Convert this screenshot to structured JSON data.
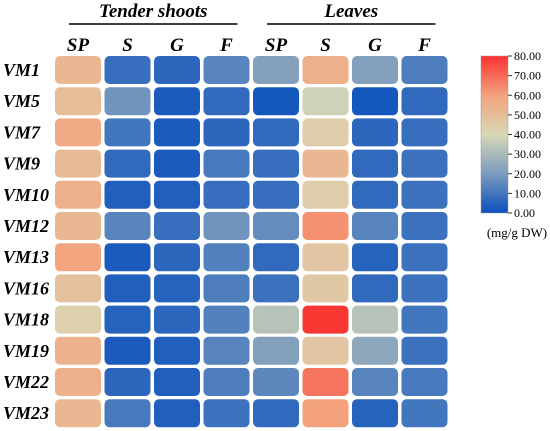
{
  "chart_data": {
    "type": "heatmap",
    "groups": [
      {
        "label": "Tender shoots",
        "columns": [
          "SP",
          "S",
          "G",
          "F"
        ]
      },
      {
        "label": "Leaves",
        "columns": [
          "SP",
          "S",
          "G",
          "F"
        ]
      }
    ],
    "columns": [
      "SP",
      "S",
      "G",
      "F",
      "SP",
      "S",
      "G",
      "F"
    ],
    "rows": [
      "VM1",
      "VM5",
      "VM7",
      "VM9",
      "VM10",
      "VM12",
      "VM13",
      "VM16",
      "VM18",
      "VM19",
      "VM22",
      "VM23"
    ],
    "values": [
      [
        52,
        8,
        6,
        14,
        22,
        55,
        22,
        12
      ],
      [
        50,
        18,
        3,
        7,
        2,
        38,
        2,
        7
      ],
      [
        57,
        10,
        3,
        6,
        7,
        44,
        6,
        8
      ],
      [
        51,
        7,
        3,
        11,
        8,
        52,
        7,
        9
      ],
      [
        55,
        4,
        4,
        8,
        8,
        44,
        7,
        9
      ],
      [
        52,
        14,
        8,
        18,
        16,
        63,
        14,
        9
      ],
      [
        59,
        3,
        6,
        13,
        7,
        47,
        5,
        9
      ],
      [
        49,
        4,
        5,
        12,
        9,
        46,
        7,
        9
      ],
      [
        43,
        5,
        6,
        13,
        33,
        79,
        33,
        10
      ],
      [
        54,
        3,
        4,
        14,
        22,
        47,
        24,
        9
      ],
      [
        55,
        6,
        4,
        12,
        15,
        68,
        14,
        11
      ],
      [
        52,
        11,
        4,
        9,
        7,
        60,
        5,
        10
      ]
    ],
    "colorbar": {
      "min": 0,
      "max": 80,
      "ticks": [
        "0.00",
        "10.00",
        "20.00",
        "30.00",
        "40.00",
        "50.00",
        "60.00",
        "70.00",
        "80.00"
      ],
      "unit": "(mg/g DW)",
      "colors": [
        "#0a50bd",
        "#d8d8b6",
        "#f93230"
      ]
    }
  }
}
